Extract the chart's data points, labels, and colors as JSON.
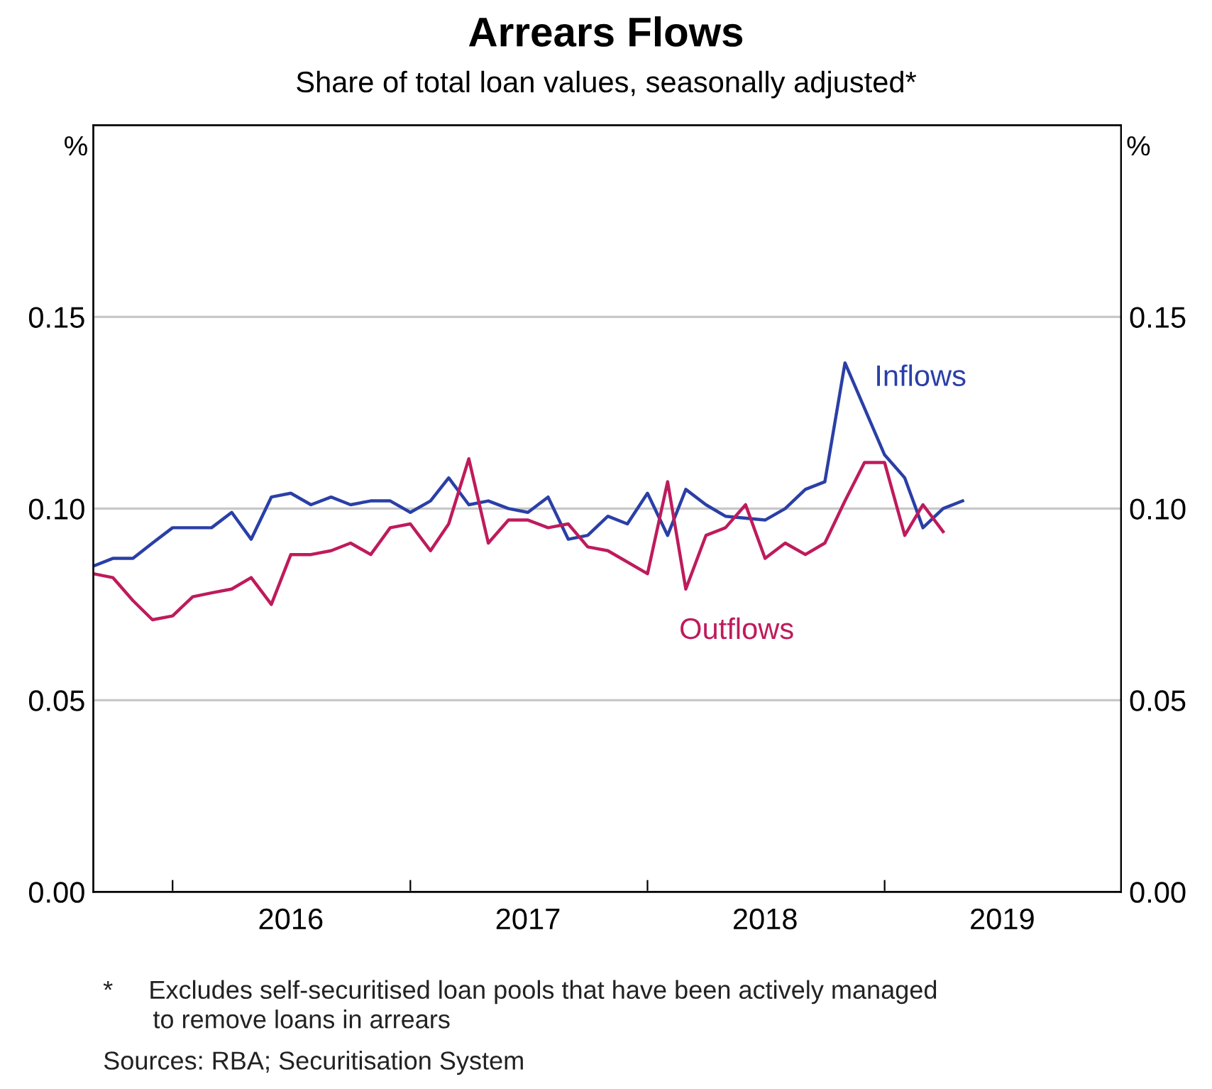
{
  "chart_data": {
    "type": "line",
    "title": "Arrears Flows",
    "subtitle": "Share of total loan values, seasonally adjusted*",
    "ylabel": "%",
    "y2label": "%",
    "series": [
      {
        "name": "Inflows",
        "color": "#2a3fa6",
        "x": [
          "2015-09",
          "2015-10",
          "2015-11",
          "2015-12",
          "2016-01",
          "2016-02",
          "2016-03",
          "2016-04",
          "2016-05",
          "2016-06",
          "2016-07",
          "2016-08",
          "2016-09",
          "2016-10",
          "2016-11",
          "2016-12",
          "2017-01",
          "2017-02",
          "2017-03",
          "2017-04",
          "2017-05",
          "2017-06",
          "2017-07",
          "2017-08",
          "2017-09",
          "2017-10",
          "2017-11",
          "2017-12",
          "2018-01",
          "2018-02",
          "2018-03",
          "2018-04",
          "2018-05",
          "2018-07",
          "2018-08",
          "2018-09",
          "2018-10",
          "2018-11",
          "2019-01",
          "2019-02",
          "2019-03",
          "2019-04",
          "2019-05"
        ],
        "values": [
          0.085,
          0.087,
          0.087,
          0.091,
          0.095,
          0.095,
          0.095,
          0.099,
          0.092,
          0.103,
          0.104,
          0.101,
          0.103,
          0.101,
          0.102,
          0.102,
          0.099,
          0.102,
          0.108,
          0.101,
          0.102,
          0.1,
          0.099,
          0.103,
          0.092,
          0.093,
          0.098,
          0.096,
          0.104,
          0.093,
          0.105,
          0.101,
          0.098,
          0.097,
          0.1,
          0.105,
          0.107,
          0.138,
          0.114,
          0.108,
          0.095,
          0.1,
          0.102
        ]
      },
      {
        "name": "Outflows",
        "color": "#be1b5c",
        "x": [
          "2015-09",
          "2015-10",
          "2015-11",
          "2015-12",
          "2016-01",
          "2016-02",
          "2016-03",
          "2016-04",
          "2016-05",
          "2016-06",
          "2016-07",
          "2016-08",
          "2016-09",
          "2016-10",
          "2016-11",
          "2016-12",
          "2017-01",
          "2017-02",
          "2017-03",
          "2017-04",
          "2017-05",
          "2017-06",
          "2017-07",
          "2017-08",
          "2017-09",
          "2017-10",
          "2017-11",
          "2018-01",
          "2018-02",
          "2018-03",
          "2018-04",
          "2018-05",
          "2018-06",
          "2018-07",
          "2018-08",
          "2018-09",
          "2018-10",
          "2018-11",
          "2018-12",
          "2019-01",
          "2019-02",
          "2019-03",
          "2019-04"
        ],
        "values": [
          0.083,
          0.082,
          0.076,
          0.071,
          0.072,
          0.077,
          0.078,
          0.079,
          0.082,
          0.075,
          0.088,
          0.088,
          0.089,
          0.091,
          0.088,
          0.095,
          0.096,
          0.089,
          0.096,
          0.113,
          0.091,
          0.097,
          0.097,
          0.095,
          0.096,
          0.09,
          0.089,
          0.083,
          0.107,
          0.079,
          0.093,
          0.095,
          0.101,
          0.087,
          0.091,
          0.088,
          0.091,
          0.102,
          0.112,
          0.112,
          0.093,
          0.101,
          0.094
        ]
      }
    ],
    "xlim": [
      "2015-09-01",
      "2019-12-31"
    ],
    "xticks": [
      {
        "value": "2016-01-01",
        "label": null
      },
      {
        "value": "2016-07-01",
        "label": "2016"
      },
      {
        "value": "2017-01-01",
        "label": null
      },
      {
        "value": "2017-07-01",
        "label": "2017"
      },
      {
        "value": "2018-01-01",
        "label": null
      },
      {
        "value": "2018-07-01",
        "label": "2018"
      },
      {
        "value": "2019-01-01",
        "label": null
      },
      {
        "value": "2019-07-01",
        "label": "2019"
      }
    ],
    "ylim": [
      0,
      0.2
    ],
    "yticks": [
      {
        "value": 0,
        "label": "0.00"
      },
      {
        "value": 0.05,
        "label": "0.05"
      },
      {
        "value": 0.1,
        "label": "0.10"
      },
      {
        "value": 0.15,
        "label": "0.15"
      }
    ],
    "y2lim": [
      0,
      0.2
    ],
    "y2ticks": [
      {
        "value": 0,
        "label": "0.00"
      },
      {
        "value": 0.05,
        "label": "0.05"
      },
      {
        "value": 0.1,
        "label": "0.10"
      },
      {
        "value": 0.15,
        "label": "0.15"
      }
    ],
    "grid": "y",
    "legend": false,
    "annotations": [
      "*     Excludes self-securitised loan pools that have been actively managed\n       to remove loans in arrears",
      "Sources: RBA; Securitisation System"
    ]
  }
}
